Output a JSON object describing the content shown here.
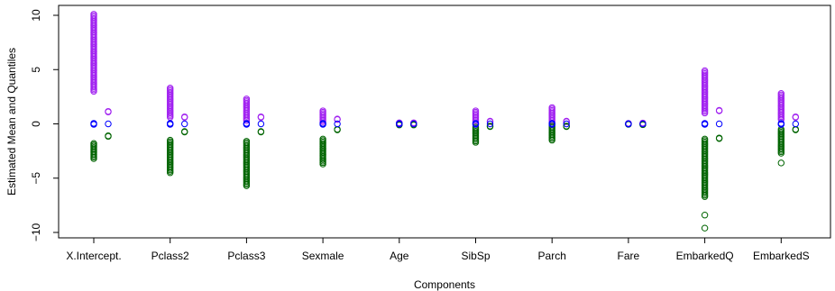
{
  "chart_data": {
    "type": "scatter",
    "xlabel": "Components",
    "ylabel": "Estimated Mean and Quantiles",
    "ylim": [
      -10.5,
      10.5
    ],
    "yticks": [
      -10,
      -5,
      0,
      5,
      10
    ],
    "categories": [
      "X.Intercept.",
      "Pclass2",
      "Pclass3",
      "Sexmale",
      "Age",
      "SibSp",
      "Parch",
      "Fare",
      "EmbarkedQ",
      "EmbarkedS"
    ],
    "colors": {
      "upper": "#a020f0",
      "mean": "#0000ff",
      "lower": "#006400"
    },
    "groups": [
      {
        "upper": [
          3.0,
          10.1
        ],
        "mean": [
          -0.05,
          0.05
        ],
        "lower": [
          -3.2,
          -1.8
        ],
        "avg_upper": 1.1,
        "avg_mean": 0.0,
        "avg_lower": -1.1
      },
      {
        "upper": [
          0.6,
          3.3
        ],
        "mean": [
          -0.05,
          0.05
        ],
        "lower": [
          -4.5,
          -1.5
        ],
        "avg_upper": 0.6,
        "avg_mean": 0.0,
        "avg_lower": -0.7
      },
      {
        "upper": [
          0.3,
          2.3
        ],
        "mean": [
          -0.05,
          0.05
        ],
        "lower": [
          -5.7,
          -1.6
        ],
        "avg_upper": 0.6,
        "avg_mean": 0.0,
        "avg_lower": -0.7
      },
      {
        "upper": [
          0.2,
          1.2
        ],
        "mean": [
          -0.05,
          0.05
        ],
        "lower": [
          -3.7,
          -1.4
        ],
        "avg_upper": 0.4,
        "avg_mean": 0.0,
        "avg_lower": -0.5
      },
      {
        "upper": [
          0.0,
          0.1
        ],
        "mean": [
          -0.02,
          0.02
        ],
        "lower": [
          -0.1,
          0.0
        ],
        "avg_upper": 0.05,
        "avg_mean": 0.0,
        "avg_lower": -0.05
      },
      {
        "upper": [
          0.2,
          1.2
        ],
        "mean": [
          -0.05,
          0.05
        ],
        "lower": [
          -1.7,
          -0.3
        ],
        "avg_upper": 0.2,
        "avg_mean": 0.0,
        "avg_lower": -0.2
      },
      {
        "upper": [
          0.2,
          1.5
        ],
        "mean": [
          -0.05,
          0.05
        ],
        "lower": [
          -1.5,
          -0.2
        ],
        "avg_upper": 0.2,
        "avg_mean": 0.0,
        "avg_lower": -0.2
      },
      {
        "upper": [
          0.0,
          0.05
        ],
        "mean": [
          -0.01,
          0.01
        ],
        "lower": [
          -0.05,
          0.0
        ],
        "avg_upper": 0.03,
        "avg_mean": 0.0,
        "avg_lower": -0.03
      },
      {
        "upper": [
          1.0,
          4.9
        ],
        "mean": [
          -0.05,
          0.05
        ],
        "lower": [
          -6.7,
          -1.4
        ],
        "avg_upper": 1.2,
        "avg_mean": 0.0,
        "avg_lower": -1.3,
        "lower_outliers": [
          -8.4,
          -9.6
        ]
      },
      {
        "upper": [
          0.4,
          2.8
        ],
        "mean": [
          -0.05,
          0.05
        ],
        "lower": [
          -2.7,
          -0.5
        ],
        "avg_upper": 0.6,
        "avg_mean": 0.0,
        "avg_lower": -0.5,
        "lower_outliers": [
          -3.6
        ]
      }
    ]
  }
}
